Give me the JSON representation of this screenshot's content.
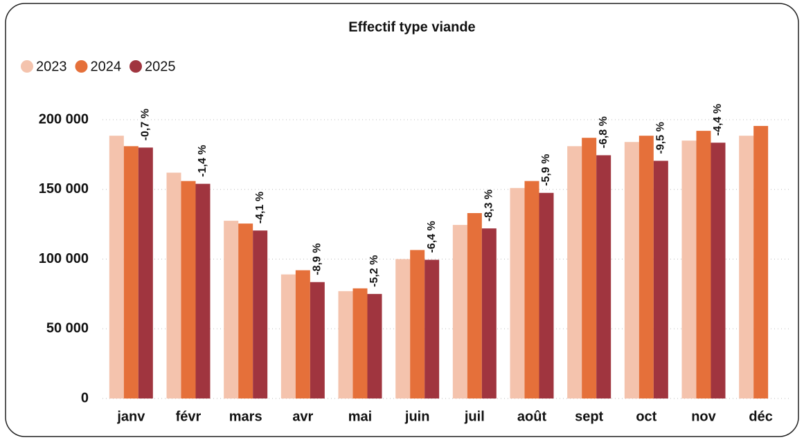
{
  "chart_data": {
    "type": "bar",
    "title": "Effectif type viande",
    "categories": [
      "janv",
      "févr",
      "mars",
      "avr",
      "mai",
      "juin",
      "juil",
      "août",
      "sept",
      "oct",
      "nov",
      "déc"
    ],
    "series": [
      {
        "name": "2023",
        "color": "#f4c3ad",
        "values": [
          188500,
          162000,
          127500,
          89000,
          77000,
          100000,
          124500,
          151000,
          181000,
          184000,
          185000,
          188500
        ]
      },
      {
        "name": "2024",
        "color": "#e5703a",
        "values": [
          181000,
          156000,
          125500,
          92000,
          79000,
          106500,
          133000,
          156000,
          187000,
          188500,
          192000,
          195500
        ]
      },
      {
        "name": "2025",
        "color": "#a0353f",
        "values": [
          180000,
          154000,
          120500,
          83500,
          75000,
          99500,
          122000,
          147500,
          174500,
          170500,
          183500,
          null
        ]
      }
    ],
    "annotations": [
      "-0,7 %",
      "-1,4 %",
      "-4,1 %",
      "-8,9 %",
      "-5,2 %",
      "-6,4 %",
      "-8,3 %",
      "-5,9 %",
      "-6,8 %",
      "-9,5 %",
      "-4,4 %",
      null
    ],
    "ylim": [
      0,
      200000
    ],
    "yticks": [
      0,
      {
        "value": 50000,
        "label": "50 000"
      },
      {
        "value": 100000,
        "label": "100 000"
      },
      {
        "value": 150000,
        "label": "150 000"
      },
      {
        "value": 200000,
        "label": "200 000"
      }
    ],
    "grid": true,
    "legend": "top-left"
  }
}
